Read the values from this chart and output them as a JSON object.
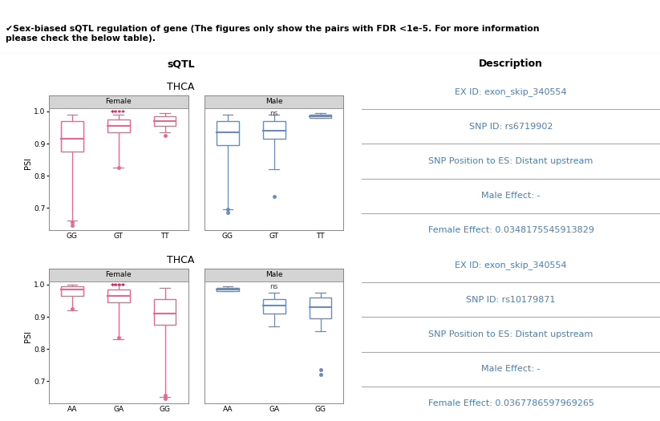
{
  "title": "Sex-biased sQTL regulation of gene",
  "subtitle_line1": "✔Sex-biased sQTL regulation of gene (The figures only show the pairs with FDR <1e-5. For more information",
  "subtitle_line2": "please check the below table).",
  "sqtl_header": "sQTL",
  "desc_header": "Description",
  "rows": [
    {
      "cancer": "THCA",
      "female_label": "Female",
      "male_label": "Male",
      "female_sig": "****",
      "male_sig": "ns",
      "female_categories": [
        "GG",
        "GT",
        "TT"
      ],
      "male_categories": [
        "GG",
        "GT",
        "TT"
      ],
      "female_boxes": [
        {
          "q1": 0.875,
          "median": 0.915,
          "q3": 0.97,
          "whislo": 0.66,
          "whishi": 0.99,
          "fliers": [
            0.655,
            0.645
          ]
        },
        {
          "q1": 0.935,
          "median": 0.955,
          "q3": 0.975,
          "whislo": 0.825,
          "whishi": 0.99,
          "fliers": [
            0.825
          ]
        },
        {
          "q1": 0.955,
          "median": 0.97,
          "q3": 0.985,
          "whislo": 0.935,
          "whishi": 0.995,
          "fliers": [
            0.925
          ]
        }
      ],
      "male_boxes": [
        {
          "q1": 0.895,
          "median": 0.935,
          "q3": 0.97,
          "whislo": 0.695,
          "whishi": 0.99,
          "fliers": [
            0.695,
            0.685
          ]
        },
        {
          "q1": 0.915,
          "median": 0.94,
          "q3": 0.97,
          "whislo": 0.82,
          "whishi": 0.99,
          "fliers": [
            0.735
          ]
        },
        {
          "q1": 0.98,
          "median": 0.985,
          "q3": 0.99,
          "whislo": 0.98,
          "whishi": 0.995,
          "fliers": []
        }
      ],
      "descriptions": [
        "EX ID: exon_skip_340554",
        "SNP ID: rs6719902",
        "SNP Position to ES: Distant upstream",
        "Male Effect: -",
        "Female Effect: 0.0348175545913829"
      ]
    },
    {
      "cancer": "THCA",
      "female_label": "Female",
      "male_label": "Male",
      "female_sig": "****",
      "male_sig": "ns",
      "female_categories": [
        "AA",
        "GA",
        "GG"
      ],
      "male_categories": [
        "AA",
        "GA",
        "GG"
      ],
      "female_boxes": [
        {
          "q1": 0.965,
          "median": 0.985,
          "q3": 0.995,
          "whislo": 0.92,
          "whishi": 1.0,
          "fliers": [
            0.925
          ]
        },
        {
          "q1": 0.945,
          "median": 0.965,
          "q3": 0.985,
          "whislo": 0.83,
          "whishi": 1.0,
          "fliers": [
            0.835
          ]
        },
        {
          "q1": 0.875,
          "median": 0.91,
          "q3": 0.955,
          "whislo": 0.65,
          "whishi": 0.99,
          "fliers": [
            0.655,
            0.645
          ]
        }
      ],
      "male_boxes": [
        {
          "q1": 0.98,
          "median": 0.985,
          "q3": 0.99,
          "whislo": 0.98,
          "whishi": 0.995,
          "fliers": []
        },
        {
          "q1": 0.91,
          "median": 0.935,
          "q3": 0.955,
          "whislo": 0.87,
          "whishi": 0.975,
          "fliers": []
        },
        {
          "q1": 0.895,
          "median": 0.93,
          "q3": 0.96,
          "whislo": 0.855,
          "whishi": 0.975,
          "fliers": [
            0.735,
            0.72
          ]
        }
      ],
      "descriptions": [
        "EX ID: exon_skip_340554",
        "SNP ID: rs10179871",
        "SNP Position to ES: Distant upstream",
        "Male Effect: -",
        "Female Effect: 0.0367786597969265"
      ]
    }
  ],
  "female_color": "#e8698d",
  "male_color": "#6b8cba",
  "header_bg": "#2d4a6e",
  "header_fg": "#ffffff",
  "desc_text_color": "#4a7fb5",
  "grid_color": "#aaaaaa",
  "sig_color_female": "#cc0044",
  "sig_color_male": "#444444",
  "ylim": [
    0.63,
    1.05
  ],
  "yticks": [
    0.7,
    0.8,
    0.9,
    1.0
  ],
  "ylabel": "PSI",
  "col_split": 0.548
}
